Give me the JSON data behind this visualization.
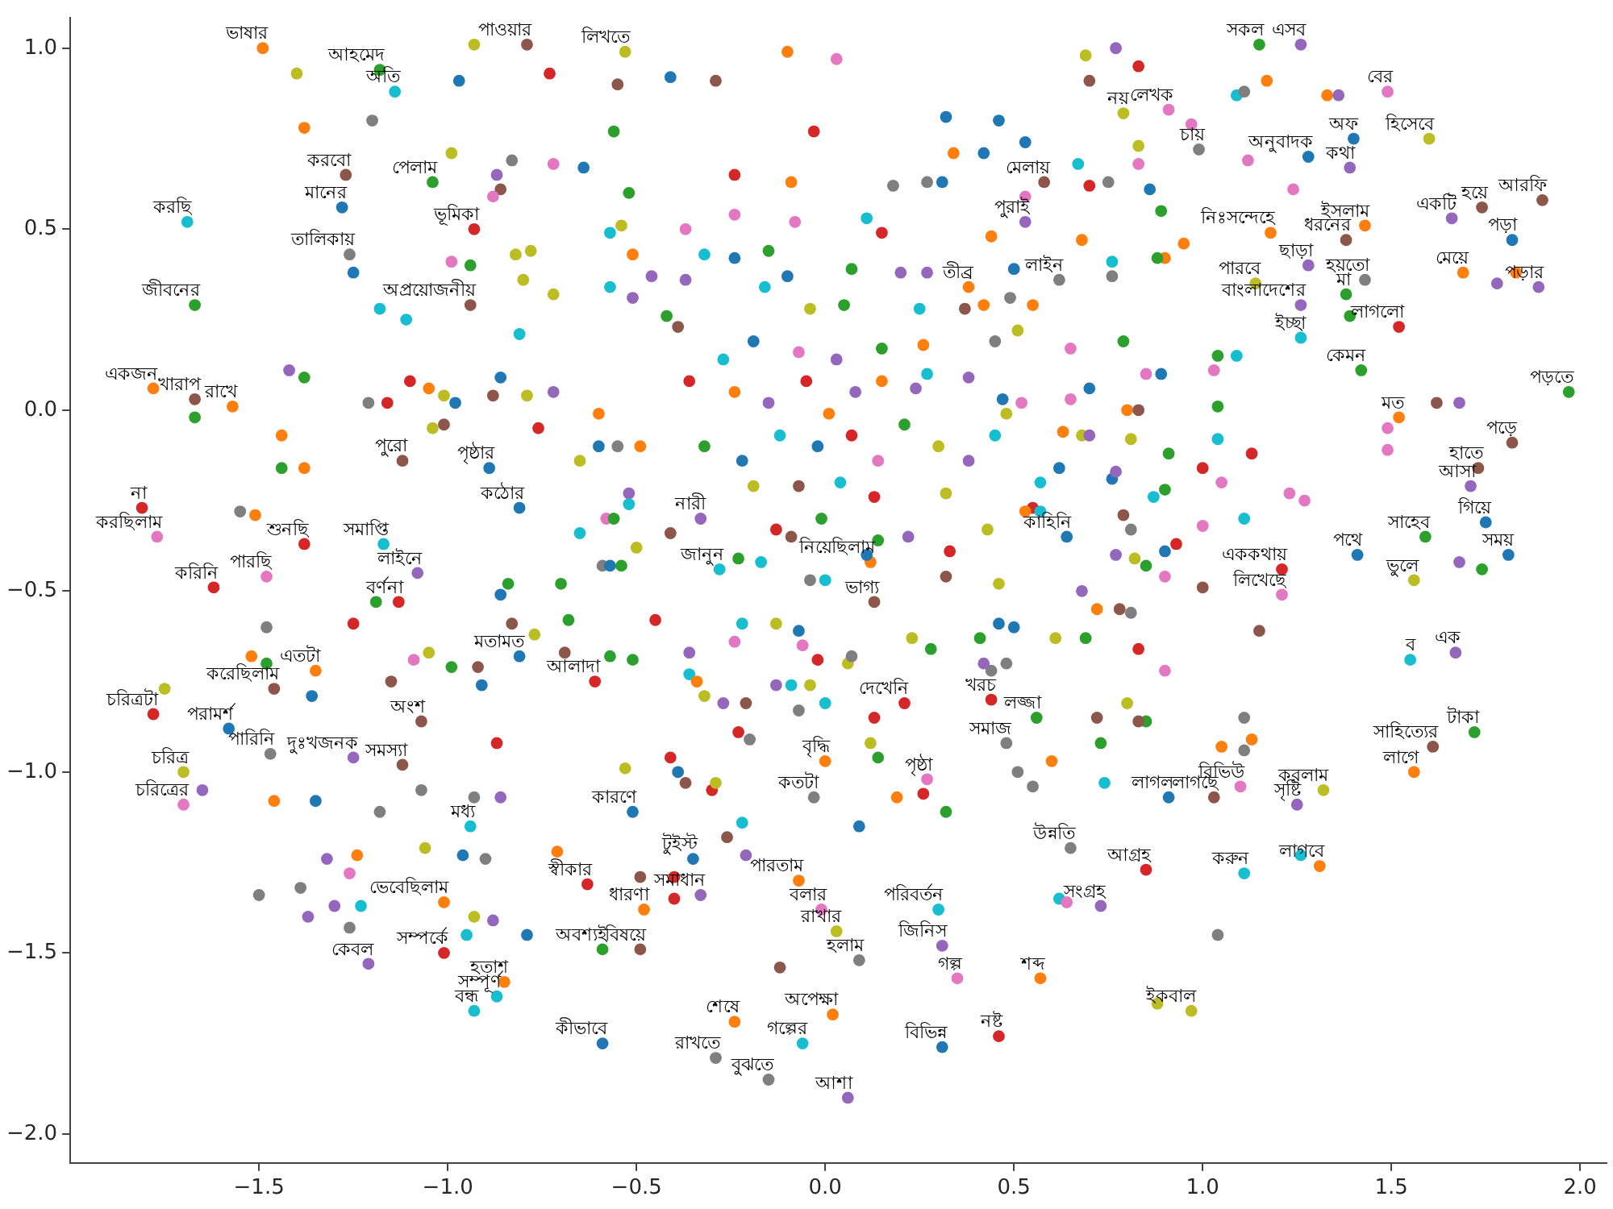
{
  "chart_data": {
    "type": "scatter",
    "marker": "circle",
    "grid": false,
    "xlim": [
      -2.0,
      2.07
    ],
    "ylim": [
      -2.08,
      1.085
    ],
    "xticks": [
      {
        "value": -1.5,
        "label": "−1.5"
      },
      {
        "value": -1,
        "label": "−1.0"
      },
      {
        "value": -0.5,
        "label": "−0.5"
      },
      {
        "value": 0,
        "label": "0.0"
      },
      {
        "value": 0.5,
        "label": "0.5"
      },
      {
        "value": 1,
        "label": "1.0"
      },
      {
        "value": 1.5,
        "label": "1.5"
      },
      {
        "value": 2,
        "label": "2.0"
      }
    ],
    "yticks": [
      {
        "value": -2,
        "label": "−2.0"
      },
      {
        "value": -1.5,
        "label": "−1.5"
      },
      {
        "value": -1,
        "label": "−1.0"
      },
      {
        "value": -0.5,
        "label": "−0.5"
      },
      {
        "value": 0,
        "label": "0.0"
      },
      {
        "value": 0.5,
        "label": "0.5"
      },
      {
        "value": 1,
        "label": "1.0"
      }
    ],
    "x": [
      -1.49,
      -1.18,
      -0.79,
      -1.27,
      -1.04,
      -1.28,
      -1.69,
      -0.93,
      -1.26,
      -1.67,
      -0.94,
      -1.78,
      -1.67,
      -1.57,
      -1.12,
      -0.89,
      -0.81,
      -1.81,
      -1.77,
      -1.38,
      -1.17,
      -1.08,
      -1.48,
      -1.62,
      -1.13,
      -1.14,
      -1.78,
      -1.58,
      -1.47,
      -1.35,
      -1.46,
      -1.25,
      -1.12,
      -1.07,
      -0.81,
      -1.7,
      -1.7,
      -0.94,
      -1.21,
      -1.01,
      -0.85,
      -0.87,
      -0.93,
      -1.01,
      -0.61,
      -0.51,
      -0.63,
      -0.48,
      -0.59,
      -0.49,
      -0.59,
      -0.24,
      -0.29,
      -0.15,
      0.06,
      -0.06,
      0.02,
      0.09,
      0.03,
      -0.01,
      -0.07,
      0.3,
      0.31,
      0.35,
      0.57,
      0.31,
      0.46,
      -0.03,
      0.0,
      0.21,
      0.48,
      0.56,
      0.44,
      0.27,
      0.65,
      -0.35,
      -0.33,
      1.15,
      1.26,
      1.49,
      1.6,
      1.4,
      1.39,
      1.28,
      0.79,
      0.91,
      0.99,
      1.9,
      1.74,
      1.66,
      1.82,
      1.43,
      1.38,
      1.14,
      1.26,
      1.26,
      1.28,
      1.43,
      1.38,
      1.52,
      1.42,
      1.69,
      1.89,
      1.97,
      1.82,
      1.73,
      1.71,
      1.75,
      1.59,
      1.81,
      1.56,
      1.41,
      1.21,
      1.21,
      1.52,
      1.18,
      1.67,
      1.55,
      1.72,
      1.61,
      1.56,
      1.32,
      1.25,
      1.11,
      1.31,
      0.85,
      0.73,
      0.91,
      1.03,
      0.97,
      1.1,
      0.58,
      0.53,
      0.62,
      0.38,
      -0.33,
      -0.28,
      0.64,
      0.13,
      0.12,
      -0.53,
      -0.83,
      -0.86,
      -0.88,
      -0.87,
      -0.82,
      -0.78,
      -0.8,
      -0.99,
      -0.94,
      -1.18,
      -1.11,
      -1.42,
      -1.38,
      -1.67,
      -1.44,
      -1.44,
      -1.38,
      -1.55,
      -1.51,
      -1.16,
      -1.21,
      -1.1,
      -1.05,
      -1.01,
      -0.98,
      -1.04,
      -1.01,
      -0.86,
      -0.88,
      -0.79,
      -0.81,
      -0.84,
      -0.86,
      -1.19,
      -0.93,
      -0.97,
      -1.4,
      -1.38,
      -1.2,
      -0.99,
      -1.25,
      -1.75,
      -1.52,
      -1.48,
      -1.36,
      -1.15,
      -1.09,
      -1.05,
      -0.99,
      -0.92,
      -0.91,
      -0.87,
      -1.65,
      -1.46,
      -1.35,
      -1.18,
      -1.07,
      -0.93,
      -0.86,
      -1.24,
      -1.32,
      -1.26,
      -1.06,
      -0.96,
      -0.9,
      -1.5,
      -1.39,
      -1.3,
      -1.23,
      -1.37,
      -1.26,
      -0.93,
      -0.88,
      -0.95,
      -0.79,
      -1.48,
      -1.25,
      -0.83,
      -0.77,
      -0.68,
      -0.57,
      -0.51,
      -0.69,
      -0.45,
      -0.36,
      -0.36,
      -0.34,
      -0.32,
      -0.27,
      -0.21,
      -0.24,
      -0.22,
      -0.13,
      -0.07,
      -0.06,
      -0.02,
      0.06,
      0.07,
      -0.13,
      -0.09,
      -0.04,
      0.0,
      -0.07,
      0.13,
      0.12,
      0.14,
      -0.23,
      -0.2,
      -0.53,
      -0.41,
      -0.39,
      -0.37,
      -0.3,
      -0.29,
      -0.22,
      -0.26,
      -0.21,
      -0.71,
      -0.49,
      -0.4,
      -0.4,
      0.19,
      0.26,
      0.32,
      0.09,
      0.41,
      0.46,
      0.5,
      0.61,
      0.44,
      0.48,
      0.42,
      0.28,
      0.23,
      0.51,
      0.55,
      0.6,
      0.62,
      0.64,
      -0.12,
      -0.73,
      -0.55,
      -0.41,
      -0.29,
      -0.1,
      0.03,
      -0.03,
      -0.56,
      -0.64,
      -0.72,
      -0.52,
      -0.24,
      -0.09,
      0.34,
      0.42,
      0.53,
      0.32,
      0.46,
      0.53,
      0.27,
      0.31,
      0.18,
      -0.08,
      -0.24,
      -0.37,
      -0.57,
      -0.54,
      -0.51,
      -0.32,
      -0.24,
      -0.15,
      0.07,
      0.2,
      0.27,
      0.15,
      0.11,
      0.44,
      0.5,
      0.55,
      0.49,
      0.42,
      0.37,
      0.25,
      0.05,
      -0.04,
      -0.1,
      -0.16,
      -0.51,
      -0.57,
      -0.46,
      -0.37,
      -0.72,
      -0.39,
      -0.42,
      0.51,
      0.45,
      0.26,
      -0.72,
      -0.6,
      -0.76,
      -0.6,
      -0.49,
      -0.55,
      -0.65,
      -0.52,
      -0.52,
      -0.58,
      -0.56,
      -0.65,
      -0.41,
      -0.5,
      -0.59,
      -0.57,
      -0.54,
      -0.7,
      -0.23,
      -0.17,
      -0.04,
      0.0,
      -0.13,
      -0.01,
      -0.09,
      0.22,
      0.14,
      0.11,
      0.33,
      0.32,
      0.46,
      0.55,
      0.57,
      0.53,
      0.43,
      0.48,
      0.52,
      0.63,
      0.62,
      0.57,
      0.32,
      0.27,
      0.24,
      0.47,
      0.38,
      0.45,
      0.38,
      0.15,
      -0.24,
      -0.15,
      -0.05,
      0.01,
      0.08,
      -0.12,
      -0.02,
      0.07,
      0.14,
      -0.22,
      -0.32,
      -0.36,
      -0.27,
      -0.19,
      -0.07,
      0.03,
      0.15,
      0.21,
      0.3,
      -0.19,
      -0.07,
      0.04,
      0.13,
      0.83,
      0.77,
      0.69,
      0.7,
      1.17,
      1.09,
      1.11,
      1.33,
      1.36,
      0.97,
      1.12,
      0.83,
      0.83,
      0.7,
      0.75,
      0.67,
      0.86,
      0.89,
      0.95,
      0.9,
      0.88,
      0.68,
      0.76,
      0.76,
      0.79,
      0.65,
      0.89,
      0.85,
      1.04,
      1.09,
      1.03,
      1.04,
      0.65,
      0.8,
      0.83,
      0.7,
      0.68,
      0.7,
      0.81,
      1.04,
      1.13,
      0.91,
      1.0,
      1.05,
      0.9,
      0.87,
      0.76,
      0.77,
      1.23,
      1.27,
      1.0,
      1.11,
      0.81,
      0.79,
      0.93,
      0.9,
      0.77,
      0.82,
      0.85,
      0.9,
      1.0,
      0.72,
      0.78,
      0.81,
      0.68,
      1.49,
      1.49,
      1.62,
      1.68,
      1.78,
      1.83,
      1.68,
      1.74,
      1.39,
      1.24,
      0.69,
      0.83,
      0.9,
      1.15,
      0.8,
      0.85,
      0.83,
      0.72,
      0.73,
      0.74,
      1.11,
      1.13,
      1.11,
      1.05,
      1.26,
      0.88,
      1.04
    ],
    "values": [
      1.0,
      0.94,
      1.01,
      0.65,
      0.63,
      0.56,
      0.52,
      0.5,
      0.43,
      0.29,
      0.29,
      0.06,
      0.03,
      0.01,
      -0.14,
      -0.16,
      -0.27,
      -0.27,
      -0.35,
      -0.37,
      -0.37,
      -0.45,
      -0.46,
      -0.49,
      -0.53,
      0.88,
      -0.84,
      -0.88,
      -0.95,
      -0.72,
      -0.77,
      -0.96,
      -0.98,
      -0.86,
      -0.68,
      -1.0,
      -1.09,
      -1.15,
      -1.53,
      -1.5,
      -1.58,
      -1.62,
      -1.66,
      -1.36,
      -0.75,
      -1.11,
      -1.31,
      -1.38,
      -1.49,
      -1.49,
      -1.75,
      -1.69,
      -1.79,
      -1.85,
      -1.9,
      -1.75,
      -1.67,
      -1.52,
      -1.44,
      -1.38,
      -1.3,
      -1.38,
      -1.48,
      -1.57,
      -1.57,
      -1.76,
      -1.73,
      -1.07,
      -0.97,
      -0.81,
      -0.92,
      -0.85,
      -0.8,
      -1.02,
      -1.21,
      -1.24,
      -1.34,
      1.01,
      1.01,
      0.88,
      0.75,
      0.75,
      0.67,
      0.7,
      0.82,
      0.83,
      0.72,
      0.58,
      0.56,
      0.53,
      0.47,
      0.51,
      0.47,
      0.35,
      0.29,
      0.2,
      0.4,
      0.36,
      0.32,
      0.23,
      0.11,
      0.38,
      0.34,
      0.05,
      -0.09,
      -0.16,
      -0.21,
      -0.31,
      -0.35,
      -0.4,
      -0.47,
      -0.4,
      -0.51,
      -0.44,
      -0.02,
      0.49,
      -0.67,
      -0.69,
      -0.89,
      -0.93,
      -1.0,
      -1.05,
      -1.09,
      -1.28,
      -1.26,
      -1.27,
      -1.37,
      -1.07,
      -1.07,
      -1.66,
      -1.04,
      0.63,
      0.52,
      0.36,
      0.34,
      -0.3,
      -0.44,
      -0.35,
      -0.53,
      -0.42,
      0.99,
      0.69,
      0.61,
      0.59,
      0.65,
      0.43,
      0.44,
      0.36,
      0.41,
      0.4,
      0.28,
      0.25,
      0.11,
      0.09,
      -0.02,
      -0.07,
      -0.16,
      -0.16,
      -0.28,
      -0.29,
      0.02,
      0.02,
      0.08,
      0.06,
      0.04,
      0.02,
      -0.05,
      -0.04,
      0.09,
      0.04,
      0.04,
      0.21,
      -0.48,
      -0.51,
      -0.53,
      1.01,
      0.91,
      0.93,
      0.78,
      0.8,
      0.71,
      0.38,
      -0.77,
      -0.68,
      -0.7,
      -0.79,
      -0.75,
      -0.69,
      -0.67,
      -0.71,
      -0.71,
      -0.76,
      -0.92,
      -1.05,
      -1.08,
      -1.08,
      -1.11,
      -1.05,
      -1.07,
      -1.07,
      -1.23,
      -1.24,
      -1.28,
      -1.21,
      -1.23,
      -1.24,
      -1.34,
      -1.32,
      -1.37,
      -1.37,
      -1.4,
      -1.43,
      -1.4,
      -1.41,
      -1.45,
      -1.45,
      -0.6,
      -0.59,
      -0.59,
      -0.62,
      -0.58,
      -0.68,
      -0.69,
      -0.67,
      -0.58,
      -0.67,
      -0.73,
      -0.75,
      -0.79,
      -0.81,
      -0.81,
      -0.64,
      -0.59,
      -0.59,
      -0.61,
      -0.65,
      -0.69,
      -0.7,
      -0.68,
      -0.76,
      -0.76,
      -0.76,
      -0.81,
      -0.83,
      -0.85,
      -0.92,
      -0.96,
      -0.89,
      -0.91,
      -0.99,
      -0.96,
      -1.0,
      -1.03,
      -1.05,
      -1.03,
      -1.14,
      -1.18,
      -1.23,
      -1.22,
      -1.29,
      -1.29,
      -1.35,
      -1.07,
      -1.06,
      -1.11,
      -1.15,
      -0.63,
      -0.59,
      -0.6,
      -0.63,
      -0.72,
      -0.7,
      -0.7,
      -0.66,
      -0.63,
      -1.0,
      -1.04,
      -0.97,
      -1.35,
      -1.36,
      -1.54,
      0.93,
      0.9,
      0.92,
      0.91,
      0.99,
      0.97,
      0.77,
      0.77,
      0.67,
      0.68,
      0.6,
      0.65,
      0.63,
      0.71,
      0.71,
      0.74,
      0.81,
      0.8,
      0.59,
      0.63,
      0.63,
      0.62,
      0.52,
      0.54,
      0.5,
      0.49,
      0.51,
      0.43,
      0.43,
      0.42,
      0.44,
      0.39,
      0.38,
      0.38,
      0.49,
      0.53,
      0.48,
      0.39,
      0.29,
      0.31,
      0.29,
      0.28,
      0.28,
      0.29,
      0.28,
      0.37,
      0.34,
      0.31,
      0.34,
      0.37,
      0.36,
      0.32,
      0.23,
      0.26,
      0.22,
      0.19,
      0.18,
      0.05,
      -0.01,
      -0.05,
      -0.1,
      -0.1,
      -0.1,
      -0.14,
      -0.23,
      -0.26,
      -0.3,
      -0.3,
      -0.34,
      -0.34,
      -0.38,
      -0.43,
      -0.43,
      -0.43,
      -0.48,
      -0.41,
      -0.42,
      -0.47,
      -0.47,
      -0.33,
      -0.3,
      -0.35,
      -0.35,
      -0.36,
      -0.4,
      -0.39,
      -0.46,
      -0.48,
      -0.27,
      -0.28,
      -0.28,
      -0.33,
      -0.01,
      0.02,
      -0.06,
      -0.16,
      -0.2,
      -0.23,
      0.1,
      0.06,
      0.03,
      0.09,
      -0.07,
      -0.14,
      0.17,
      0.05,
      0.02,
      0.08,
      -0.01,
      0.05,
      -0.07,
      -0.1,
      -0.07,
      -0.14,
      -0.14,
      -0.1,
      0.08,
      0.14,
      0.19,
      0.16,
      0.14,
      0.08,
      -0.04,
      -0.1,
      -0.21,
      -0.21,
      -0.2,
      -0.24,
      0.95,
      1.0,
      0.98,
      0.91,
      0.91,
      0.87,
      0.88,
      0.87,
      0.87,
      0.79,
      0.69,
      0.68,
      0.73,
      0.62,
      0.63,
      0.68,
      0.61,
      0.55,
      0.46,
      0.42,
      0.42,
      0.47,
      0.41,
      0.37,
      0.19,
      0.17,
      0.1,
      0.1,
      0.15,
      0.15,
      0.11,
      0.01,
      0.03,
      0.0,
      0.0,
      0.06,
      -0.07,
      -0.07,
      -0.08,
      -0.08,
      -0.12,
      -0.12,
      -0.16,
      -0.2,
      -0.22,
      -0.24,
      -0.19,
      -0.17,
      -0.23,
      -0.25,
      -0.32,
      -0.3,
      -0.33,
      -0.29,
      -0.37,
      -0.39,
      -0.4,
      -0.41,
      -0.43,
      -0.46,
      -0.49,
      -0.55,
      -0.55,
      -0.56,
      -0.5,
      -0.05,
      -0.11,
      0.02,
      0.02,
      0.35,
      0.38,
      -0.42,
      -0.44,
      0.26,
      0.61,
      -0.63,
      -0.66,
      -0.72,
      -0.61,
      -0.81,
      -0.86,
      -0.86,
      -0.85,
      -0.92,
      -1.03,
      -0.85,
      -0.91,
      -0.94,
      -0.93,
      -1.23,
      -1.64,
      -1.45
    ],
    "colors": [
      "#ff7f0e",
      "#2ca02c",
      "#8c564b",
      "#8c564b",
      "#2ca02c",
      "#1f77b4",
      "#17becf",
      "#d62728",
      "#7f7f7f",
      "#2ca02c",
      "#8c564b",
      "#ff7f0e",
      "#8c564b",
      "#ff7f0e",
      "#8c564b",
      "#1f77b4",
      "#1f77b4",
      "#d62728",
      "#e377c2",
      "#d62728",
      "#17becf",
      "#9467bd",
      "#e377c2",
      "#d62728",
      "#d62728",
      "#17becf",
      "#d62728",
      "#1f77b4",
      "#7f7f7f",
      "#ff7f0e",
      "#8c564b",
      "#9467bd",
      "#8c564b",
      "#8c564b",
      "#1f77b4",
      "#bcbd22",
      "#e377c2",
      "#17becf",
      "#9467bd",
      "#d62728",
      "#ff7f0e",
      "#17becf",
      "#17becf",
      "#ff7f0e",
      "#d62728",
      "#1f77b4",
      "#d62728",
      "#ff7f0e",
      "#2ca02c",
      "#8c564b",
      "#1f77b4",
      "#ff7f0e",
      "#7f7f7f",
      "#7f7f7f",
      "#9467bd",
      "#17becf",
      "#ff7f0e",
      "#7f7f7f",
      "#bcbd22",
      "#e377c2",
      "#ff7f0e",
      "#17becf",
      "#9467bd",
      "#e377c2",
      "#ff7f0e",
      "#1f77b4",
      "#d62728",
      "#7f7f7f",
      "#ff7f0e",
      "#d62728",
      "#7f7f7f",
      "#2ca02c",
      "#d62728",
      "#e377c2",
      "#7f7f7f",
      "#1f77b4",
      "#9467bd",
      "#2ca02c",
      "#9467bd",
      "#e377c2",
      "#bcbd22",
      "#1f77b4",
      "#9467bd",
      "#1f77b4",
      "#bcbd22",
      "#e377c2",
      "#7f7f7f",
      "#8c564b",
      "#8c564b",
      "#9467bd",
      "#1f77b4",
      "#ff7f0e",
      "#8c564b",
      "#bcbd22",
      "#9467bd",
      "#17becf",
      "#9467bd",
      "#7f7f7f",
      "#2ca02c",
      "#d62728",
      "#2ca02c",
      "#ff7f0e",
      "#9467bd",
      "#2ca02c",
      "#8c564b",
      "#8c564b",
      "#9467bd",
      "#1f77b4",
      "#2ca02c",
      "#1f77b4",
      "#bcbd22",
      "#1f77b4",
      "#e377c2",
      "#d62728",
      "#ff7f0e",
      "#ff7f0e",
      "#9467bd",
      "#17becf",
      "#2ca02c",
      "#8c564b",
      "#ff7f0e",
      "#bcbd22",
      "#9467bd",
      "#17becf",
      "#ff7f0e",
      "#d62728",
      "#9467bd",
      "#1f77b4",
      "#8c564b",
      "#bcbd22",
      "#e377c2",
      "#8c564b",
      "#9467bd",
      "#7f7f7f",
      "#ff7f0e",
      "#9467bd",
      "#17becf",
      "#1f77b4",
      "#8c564b",
      "#ff7f0e",
      "#bcbd22",
      "#7f7f7f",
      "#8c564b",
      "#e377c2",
      "#9467bd",
      "#bcbd22",
      "#bcbd22",
      "#bcbd22",
      "#e377c2",
      "#2ca02c",
      "#17becf",
      "#17becf",
      "#9467bd",
      "#2ca02c",
      "#2ca02c",
      "#ff7f0e",
      "#2ca02c",
      "#ff7f0e",
      "#7f7f7f",
      "#ff7f0e",
      "#d62728",
      "#7f7f7f",
      "#d62728",
      "#ff7f0e",
      "#bcbd22",
      "#1f77b4",
      "#bcbd22",
      "#8c564b",
      "#1f77b4",
      "#8c564b",
      "#bcbd22",
      "#17becf",
      "#2ca02c",
      "#1f77b4",
      "#2ca02c",
      "#bcbd22",
      "#1f77b4",
      "#bcbd22",
      "#ff7f0e",
      "#7f7f7f",
      "#bcbd22",
      "#1f77b4",
      "#bcbd22",
      "#ff7f0e",
      "#2ca02c",
      "#1f77b4",
      "#8c564b",
      "#e377c2",
      "#bcbd22",
      "#2ca02c",
      "#8c564b",
      "#1f77b4",
      "#d62728",
      "#9467bd",
      "#ff7f0e",
      "#1f77b4",
      "#7f7f7f",
      "#7f7f7f",
      "#7f7f7f",
      "#9467bd",
      "#ff7f0e",
      "#9467bd",
      "#e377c2",
      "#bcbd22",
      "#1f77b4",
      "#7f7f7f",
      "#7f7f7f",
      "#7f7f7f",
      "#9467bd",
      "#17becf",
      "#9467bd",
      "#7f7f7f",
      "#bcbd22",
      "#9467bd",
      "#17becf",
      "#1f77b4",
      "#7f7f7f",
      "#d62728",
      "#8c564b",
      "#bcbd22",
      "#2ca02c",
      "#2ca02c",
      "#2ca02c",
      "#8c564b",
      "#d62728",
      "#9467bd",
      "#17becf",
      "#ff7f0e",
      "#bcbd22",
      "#9467bd",
      "#8c564b",
      "#e377c2",
      "#17becf",
      "#bcbd22",
      "#1f77b4",
      "#e377c2",
      "#d62728",
      "#bcbd22",
      "#7f7f7f",
      "#9467bd",
      "#17becf",
      "#bcbd22",
      "#17becf",
      "#7f7f7f",
      "#d62728",
      "#bcbd22",
      "#2ca02c",
      "#d62728",
      "#7f7f7f",
      "#bcbd22",
      "#d62728",
      "#1f77b4",
      "#8c564b",
      "#d62728",
      "#bcbd22",
      "#17becf",
      "#8c564b",
      "#9467bd",
      "#ff7f0e",
      "#8c564b",
      "#d62728",
      "#d62728",
      "#ff7f0e",
      "#d62728",
      "#2ca02c",
      "#1f77b4",
      "#2ca02c",
      "#1f77b4",
      "#1f77b4",
      "#bcbd22",
      "#7f7f7f",
      "#7f7f7f",
      "#9467bd",
      "#2ca02c",
      "#bcbd22",
      "#7f7f7f",
      "#7f7f7f",
      "#ff7f0e",
      "#17becf",
      "#e377c2",
      "#8c564b",
      "#d62728",
      "#8c564b",
      "#1f77b4",
      "#8c564b",
      "#ff7f0e",
      "#e377c2",
      "#d62728",
      "#2ca02c",
      "#1f77b4",
      "#e377c2",
      "#2ca02c",
      "#d62728",
      "#ff7f0e",
      "#ff7f0e",
      "#1f77b4",
      "#1f77b4",
      "#1f77b4",
      "#1f77b4",
      "#e377c2",
      "#7f7f7f",
      "#1f77b4",
      "#7f7f7f",
      "#e377c2",
      "#e377c2",
      "#e377c2",
      "#17becf",
      "#bcbd22",
      "#ff7f0e",
      "#17becf",
      "#1f77b4",
      "#2ca02c",
      "#2ca02c",
      "#9467bd",
      "#9467bd",
      "#d62728",
      "#17becf",
      "#ff7f0e",
      "#1f77b4",
      "#ff7f0e",
      "#7f7f7f",
      "#ff7f0e",
      "#8c564b",
      "#17becf",
      "#2ca02c",
      "#bcbd22",
      "#1f77b4",
      "#17becf",
      "#9467bd",
      "#17becf",
      "#9467bd",
      "#9467bd",
      "#bcbd22",
      "#8c564b",
      "#2ca02c",
      "#bcbd22",
      "#7f7f7f",
      "#ff7f0e",
      "#9467bd",
      "#ff7f0e",
      "#d62728",
      "#1f77b4",
      "#ff7f0e",
      "#7f7f7f",
      "#bcbd22",
      "#9467bd",
      "#17becf",
      "#e377c2",
      "#2ca02c",
      "#17becf",
      "#8c564b",
      "#bcbd22",
      "#7f7f7f",
      "#1f77b4",
      "#2ca02c",
      "#2ca02c",
      "#2ca02c",
      "#17becf",
      "#7f7f7f",
      "#17becf",
      "#d62728",
      "#2ca02c",
      "#8c564b",
      "#9467bd",
      "#2ca02c",
      "#1f77b4",
      "#d62728",
      "#8c564b",
      "#bcbd22",
      "#d62728",
      "#17becf",
      "#ff7f0e",
      "#bcbd22",
      "#bcbd22",
      "#e377c2",
      "#ff7f0e",
      "#1f77b4",
      "#17becf",
      "#bcbd22",
      "#17becf",
      "#9467bd",
      "#1f77b4",
      "#9467bd",
      "#17becf",
      "#9467bd",
      "#2ca02c",
      "#ff7f0e",
      "#9467bd",
      "#d62728",
      "#ff7f0e",
      "#9467bd",
      "#17becf",
      "#1f77b4",
      "#d62728",
      "#e377c2",
      "#1f77b4",
      "#2ca02c",
      "#d62728",
      "#17becf",
      "#1f77b4",
      "#e377c2",
      "#9467bd",
      "#ff7f0e",
      "#2ca02c",
      "#bcbd22",
      "#bcbd22",
      "#8c564b",
      "#17becf",
      "#d62728",
      "#d62728",
      "#9467bd",
      "#bcbd22",
      "#8c564b",
      "#ff7f0e",
      "#17becf",
      "#7f7f7f",
      "#ff7f0e",
      "#9467bd",
      "#e377c2",
      "#e377c2",
      "#e377c2",
      "#bcbd22",
      "#d62728",
      "#7f7f7f",
      "#17becf",
      "#1f77b4",
      "#2ca02c",
      "#ff7f0e",
      "#ff7f0e",
      "#2ca02c",
      "#ff7f0e",
      "#17becf",
      "#7f7f7f",
      "#2ca02c",
      "#e377c2",
      "#1f77b4",
      "#e377c2",
      "#2ca02c",
      "#17becf",
      "#e377c2",
      "#2ca02c",
      "#e377c2",
      "#ff7f0e",
      "#8c564b",
      "#1f77b4",
      "#bcbd22",
      "#9467bd",
      "#bcbd22",
      "#17becf",
      "#d62728",
      "#2ca02c",
      "#d62728",
      "#e377c2",
      "#2ca02c",
      "#17becf",
      "#1f77b4",
      "#9467bd",
      "#e377c2",
      "#e377c2",
      "#e377c2",
      "#17becf",
      "#7f7f7f",
      "#8c564b",
      "#d62728",
      "#1f77b4",
      "#9467bd",
      "#bcbd22",
      "#2ca02c",
      "#e377c2",
      "#8c564b",
      "#ff7f0e",
      "#8c564b",
      "#7f7f7f",
      "#9467bd",
      "#e377c2",
      "#e377c2",
      "#8c564b",
      "#9467bd",
      "#9467bd",
      "#ff7f0e",
      "#9467bd",
      "#2ca02c",
      "#2ca02c",
      "#e377c2",
      "#2ca02c",
      "#d62728",
      "#e377c2",
      "#8c564b",
      "#bcbd22",
      "#2ca02c",
      "#8c564b",
      "#8c564b",
      "#2ca02c",
      "#17becf",
      "#7f7f7f",
      "#ff7f0e",
      "#7f7f7f",
      "#ff7f0e",
      "#17becf",
      "#bcbd22",
      "#7f7f7f"
    ],
    "annotations": [
      {
        "text": "ভাষার",
        "x": -1.49,
        "y": 1.0
      },
      {
        "text": "আহমেদ",
        "x": -1.18,
        "y": 0.94
      },
      {
        "text": "পাওয়ার",
        "x": -0.79,
        "y": 1.01
      },
      {
        "text": "করবো",
        "x": -1.27,
        "y": 0.65
      },
      {
        "text": "পেলাম",
        "x": -1.04,
        "y": 0.63
      },
      {
        "text": "মানের",
        "x": -1.28,
        "y": 0.56
      },
      {
        "text": "করছি",
        "x": -1.69,
        "y": 0.52
      },
      {
        "text": "ভূমিকা",
        "x": -0.93,
        "y": 0.5
      },
      {
        "text": "তালিকায়",
        "x": -1.26,
        "y": 0.43
      },
      {
        "text": "জীবনের",
        "x": -1.67,
        "y": 0.29
      },
      {
        "text": "অপ্রয়োজনীয়",
        "x": -0.94,
        "y": 0.29
      },
      {
        "text": "একজন",
        "x": -1.78,
        "y": 0.06
      },
      {
        "text": "খারাপ",
        "x": -1.67,
        "y": 0.03
      },
      {
        "text": "রাখে",
        "x": -1.57,
        "y": 0.01
      },
      {
        "text": "পুরো",
        "x": -1.12,
        "y": -0.14
      },
      {
        "text": "পৃষ্ঠার",
        "x": -0.89,
        "y": -0.16
      },
      {
        "text": "কঠোর",
        "x": -0.81,
        "y": -0.27
      },
      {
        "text": "না",
        "x": -1.81,
        "y": -0.27
      },
      {
        "text": "করছিলাম",
        "x": -1.77,
        "y": -0.35
      },
      {
        "text": "শুনছি",
        "x": -1.38,
        "y": -0.37
      },
      {
        "text": "সমাপ্তি",
        "x": -1.17,
        "y": -0.37
      },
      {
        "text": "লাইনে",
        "x": -1.08,
        "y": -0.45
      },
      {
        "text": "পারছি",
        "x": -1.48,
        "y": -0.46
      },
      {
        "text": "করিনি",
        "x": -1.62,
        "y": -0.49
      },
      {
        "text": "বর্ণনা",
        "x": -1.13,
        "y": -0.53
      },
      {
        "text": "অতি",
        "x": -1.14,
        "y": 0.88
      },
      {
        "text": "চরিত্রটা",
        "x": -1.78,
        "y": -0.84
      },
      {
        "text": "পরামর্শ",
        "x": -1.58,
        "y": -0.88
      },
      {
        "text": "পারিনি",
        "x": -1.47,
        "y": -0.95
      },
      {
        "text": "এতটা",
        "x": -1.35,
        "y": -0.72
      },
      {
        "text": "করেছিলাম",
        "x": -1.46,
        "y": -0.77
      },
      {
        "text": "দুঃখজনক",
        "x": -1.25,
        "y": -0.96
      },
      {
        "text": "সমস্যা",
        "x": -1.12,
        "y": -0.98
      },
      {
        "text": "অংশ",
        "x": -1.07,
        "y": -0.86
      },
      {
        "text": "মতামত",
        "x": -0.81,
        "y": -0.68
      },
      {
        "text": "চরিত্র",
        "x": -1.7,
        "y": -1.0
      },
      {
        "text": "চরিত্রের",
        "x": -1.7,
        "y": -1.09
      },
      {
        "text": "মধ্য",
        "x": -0.94,
        "y": -1.15
      },
      {
        "text": "কেবল",
        "x": -1.21,
        "y": -1.53
      },
      {
        "text": "সম্পর্কে",
        "x": -1.01,
        "y": -1.5
      },
      {
        "text": "হতাশ",
        "x": -0.85,
        "y": -1.58
      },
      {
        "text": "সম্পূর্ণ",
        "x": -0.87,
        "y": -1.62
      },
      {
        "text": "বন্ধ",
        "x": -0.93,
        "y": -1.66
      },
      {
        "text": "ভেবেছিলাম",
        "x": -1.01,
        "y": -1.36
      },
      {
        "text": "আলাদা",
        "x": -0.61,
        "y": -0.75
      },
      {
        "text": "কারণে",
        "x": -0.51,
        "y": -1.11
      },
      {
        "text": "স্বীকার",
        "x": -0.63,
        "y": -1.31
      },
      {
        "text": "ধারণা",
        "x": -0.48,
        "y": -1.38
      },
      {
        "text": "অবশ্যই",
        "x": -0.59,
        "y": -1.49
      },
      {
        "text": "বিষয়ে",
        "x": -0.49,
        "y": -1.49
      },
      {
        "text": "কীভাবে",
        "x": -0.59,
        "y": -1.75
      },
      {
        "text": "শেষে",
        "x": -0.24,
        "y": -1.69
      },
      {
        "text": "রাখতে",
        "x": -0.29,
        "y": -1.79
      },
      {
        "text": "বুঝতে",
        "x": -0.15,
        "y": -1.85
      },
      {
        "text": "আশা",
        "x": 0.06,
        "y": -1.9
      },
      {
        "text": "গল্পের",
        "x": -0.06,
        "y": -1.75
      },
      {
        "text": "অপেক্ষা",
        "x": 0.02,
        "y": -1.67
      },
      {
        "text": "হলাম",
        "x": 0.09,
        "y": -1.52
      },
      {
        "text": "রাখার",
        "x": 0.03,
        "y": -1.44
      },
      {
        "text": "বলার",
        "x": -0.01,
        "y": -1.38
      },
      {
        "text": "পারতাম",
        "x": -0.07,
        "y": -1.3
      },
      {
        "text": "পরিবর্তন",
        "x": 0.3,
        "y": -1.38
      },
      {
        "text": "জিনিস",
        "x": 0.31,
        "y": -1.48
      },
      {
        "text": "গল্প",
        "x": 0.35,
        "y": -1.57
      },
      {
        "text": "শব্দ",
        "x": 0.57,
        "y": -1.57
      },
      {
        "text": "বিভিন্ন",
        "x": 0.31,
        "y": -1.76
      },
      {
        "text": "নষ্ট",
        "x": 0.46,
        "y": -1.73
      },
      {
        "text": "কতটা",
        "x": -0.03,
        "y": -1.07
      },
      {
        "text": "বৃদ্ধি",
        "x": 0.0,
        "y": -0.97
      },
      {
        "text": "দেখেনি",
        "x": 0.21,
        "y": -0.81
      },
      {
        "text": "সমাজ",
        "x": 0.48,
        "y": -0.92
      },
      {
        "text": "লজ্জা",
        "x": 0.56,
        "y": -0.85
      },
      {
        "text": "খরচ",
        "x": 0.44,
        "y": -0.8
      },
      {
        "text": "পৃষ্ঠা",
        "x": 0.27,
        "y": -1.02
      },
      {
        "text": "উন্নতি",
        "x": 0.65,
        "y": -1.21
      },
      {
        "text": "টুইস্ট",
        "x": -0.35,
        "y": -1.24
      },
      {
        "text": "সমাধান",
        "x": -0.33,
        "y": -1.34
      },
      {
        "text": "সকল",
        "x": 1.15,
        "y": 1.01
      },
      {
        "text": "এসব",
        "x": 1.26,
        "y": 1.01
      },
      {
        "text": "বের",
        "x": 1.49,
        "y": 0.88
      },
      {
        "text": "হিসেবে",
        "x": 1.6,
        "y": 0.75
      },
      {
        "text": "অফ",
        "x": 1.4,
        "y": 0.75
      },
      {
        "text": "কথা",
        "x": 1.39,
        "y": 0.67
      },
      {
        "text": "অনুবাদক",
        "x": 1.28,
        "y": 0.7
      },
      {
        "text": "নয়",
        "x": 0.79,
        "y": 0.82
      },
      {
        "text": "লেখক",
        "x": 0.91,
        "y": 0.83
      },
      {
        "text": "চায়",
        "x": 0.99,
        "y": 0.72
      },
      {
        "text": "আরফি",
        "x": 1.9,
        "y": 0.58
      },
      {
        "text": "হয়ে",
        "x": 1.74,
        "y": 0.56
      },
      {
        "text": "একটি",
        "x": 1.66,
        "y": 0.53
      },
      {
        "text": "পড়া",
        "x": 1.82,
        "y": 0.47
      },
      {
        "text": "ইসলাম",
        "x": 1.43,
        "y": 0.51
      },
      {
        "text": "ধরনের",
        "x": 1.38,
        "y": 0.47
      },
      {
        "text": "পারবে",
        "x": 1.14,
        "y": 0.35
      },
      {
        "text": "বাংলাদেশের",
        "x": 1.26,
        "y": 0.29
      },
      {
        "text": "ইচ্ছা",
        "x": 1.26,
        "y": 0.2
      },
      {
        "text": "ছাড়া",
        "x": 1.28,
        "y": 0.4
      },
      {
        "text": "হয়তো",
        "x": 1.43,
        "y": 0.36
      },
      {
        "text": "মা",
        "x": 1.38,
        "y": 0.32
      },
      {
        "text": "লাগলো",
        "x": 1.52,
        "y": 0.23
      },
      {
        "text": "কেমন",
        "x": 1.42,
        "y": 0.11
      },
      {
        "text": "মেয়ে",
        "x": 1.69,
        "y": 0.38
      },
      {
        "text": "পড়ার",
        "x": 1.89,
        "y": 0.34
      },
      {
        "text": "পড়তে",
        "x": 1.97,
        "y": 0.05
      },
      {
        "text": "পড়ে",
        "x": 1.82,
        "y": -0.09
      },
      {
        "text": "হাতে",
        "x": 1.73,
        "y": -0.16
      },
      {
        "text": "আসা",
        "x": 1.71,
        "y": -0.21
      },
      {
        "text": "গিয়ে",
        "x": 1.75,
        "y": -0.31
      },
      {
        "text": "সাহেব",
        "x": 1.59,
        "y": -0.35
      },
      {
        "text": "সময়",
        "x": 1.81,
        "y": -0.4
      },
      {
        "text": "ভুলে",
        "x": 1.56,
        "y": -0.47
      },
      {
        "text": "পথে",
        "x": 1.41,
        "y": -0.4
      },
      {
        "text": "লিখেছে",
        "x": 1.21,
        "y": -0.51
      },
      {
        "text": "এককথায়",
        "x": 1.21,
        "y": -0.44
      },
      {
        "text": "মত",
        "x": 1.52,
        "y": -0.02
      },
      {
        "text": "নিঃসন্দেহে",
        "x": 1.18,
        "y": 0.49
      },
      {
        "text": "এক",
        "x": 1.67,
        "y": -0.67
      },
      {
        "text": "ব",
        "x": 1.55,
        "y": -0.69
      },
      {
        "text": "টাকা",
        "x": 1.72,
        "y": -0.89
      },
      {
        "text": "সাহিত্যের",
        "x": 1.61,
        "y": -0.93
      },
      {
        "text": "লাগে",
        "x": 1.56,
        "y": -1.0
      },
      {
        "text": "করলাম",
        "x": 1.32,
        "y": -1.05
      },
      {
        "text": "সৃষ্টি",
        "x": 1.25,
        "y": -1.09
      },
      {
        "text": "করুন",
        "x": 1.11,
        "y": -1.28
      },
      {
        "text": "লাগবে",
        "x": 1.31,
        "y": -1.26
      },
      {
        "text": "আগ্রহ",
        "x": 0.85,
        "y": -1.27
      },
      {
        "text": "সংগ্রহ",
        "x": 0.73,
        "y": -1.37
      },
      {
        "text": "লাগল",
        "x": 0.91,
        "y": -1.07
      },
      {
        "text": "লাগছে",
        "x": 1.03,
        "y": -1.07
      },
      {
        "text": "ইকবাল",
        "x": 0.97,
        "y": -1.66
      },
      {
        "text": "রিভিউ",
        "x": 1.1,
        "y": -1.04
      },
      {
        "text": "মেলায়",
        "x": 0.58,
        "y": 0.63
      },
      {
        "text": "পুরাই",
        "x": 0.53,
        "y": 0.52
      },
      {
        "text": "লাইন",
        "x": 0.62,
        "y": 0.36
      },
      {
        "text": "তীব্র",
        "x": 0.38,
        "y": 0.34
      },
      {
        "text": "নারী",
        "x": -0.33,
        "y": -0.3
      },
      {
        "text": "জানুন",
        "x": -0.28,
        "y": -0.44
      },
      {
        "text": "কাহিনি",
        "x": 0.64,
        "y": -0.35
      },
      {
        "text": "ভাগ্য",
        "x": 0.13,
        "y": -0.53
      },
      {
        "text": "নিয়েছিলাম",
        "x": 0.12,
        "y": -0.42
      },
      {
        "text": "লিখতে",
        "x": -0.53,
        "y": 0.99
      }
    ]
  }
}
